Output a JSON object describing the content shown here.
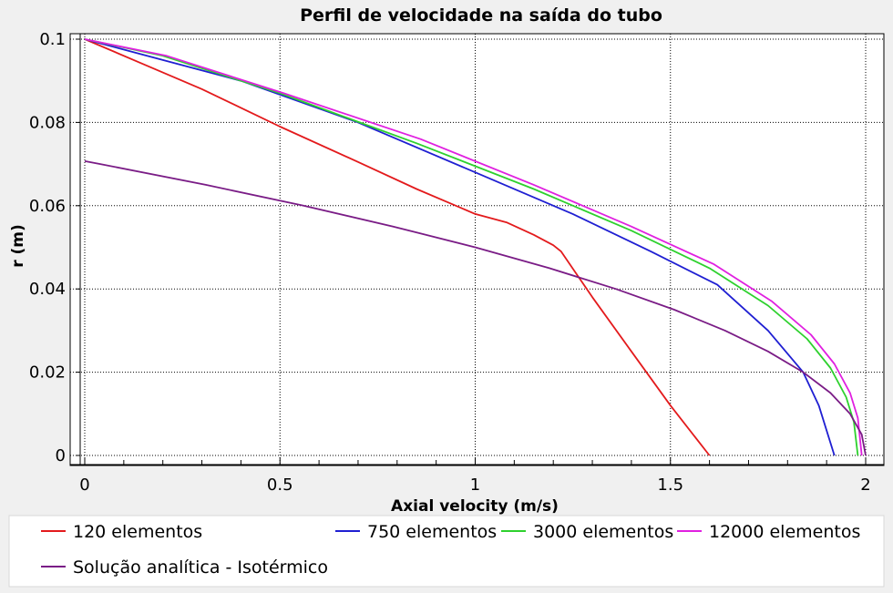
{
  "chart_data": {
    "type": "line",
    "title": "Perfil de velocidade na saída do tubo",
    "xlabel": "Axial velocity (m/s)",
    "ylabel": "r (m)",
    "xlim": [
      0,
      2
    ],
    "ylim": [
      0,
      0.1
    ],
    "x_ticks": [
      0,
      0.5,
      1,
      1.5,
      2
    ],
    "x_tick_labels": [
      "0",
      "0.5",
      "1",
      "1.5",
      "2"
    ],
    "y_ticks": [
      0,
      0.02,
      0.04,
      0.06,
      0.08,
      0.1
    ],
    "y_tick_labels": [
      "0",
      "0.02",
      "0.04",
      "0.06",
      "0.08",
      "0.1"
    ],
    "grid": true,
    "legend_position": "bottom",
    "series": [
      {
        "name": "120 elementos",
        "color": "#e31a1c",
        "points": [
          [
            1.6,
            0.0
          ],
          [
            1.5,
            0.012
          ],
          [
            1.4,
            0.025
          ],
          [
            1.3,
            0.038
          ],
          [
            1.22,
            0.049
          ],
          [
            1.2,
            0.0505
          ],
          [
            1.15,
            0.053
          ],
          [
            1.08,
            0.056
          ],
          [
            1.0,
            0.058
          ],
          [
            0.85,
            0.064
          ],
          [
            0.7,
            0.0705
          ],
          [
            0.5,
            0.079
          ],
          [
            0.3,
            0.088
          ],
          [
            0.15,
            0.094
          ],
          [
            0.0,
            0.1
          ]
        ]
      },
      {
        "name": "750 elementos",
        "color": "#1f1fd2",
        "points": [
          [
            1.92,
            0.0
          ],
          [
            1.88,
            0.012
          ],
          [
            1.84,
            0.02
          ],
          [
            1.75,
            0.03
          ],
          [
            1.62,
            0.041
          ],
          [
            1.45,
            0.049
          ],
          [
            1.25,
            0.058
          ],
          [
            1.0,
            0.068
          ],
          [
            0.7,
            0.08
          ],
          [
            0.4,
            0.09
          ],
          [
            0.2,
            0.095
          ],
          [
            0.0,
            0.1
          ]
        ]
      },
      {
        "name": "3000 elementos",
        "color": "#2ed12e",
        "points": [
          [
            1.98,
            0.0
          ],
          [
            1.97,
            0.008
          ],
          [
            1.95,
            0.014
          ],
          [
            1.91,
            0.021
          ],
          [
            1.85,
            0.028
          ],
          [
            1.75,
            0.036
          ],
          [
            1.6,
            0.045
          ],
          [
            1.4,
            0.054
          ],
          [
            1.15,
            0.064
          ],
          [
            0.85,
            0.075
          ],
          [
            0.5,
            0.087
          ],
          [
            0.2,
            0.096
          ],
          [
            0.0,
            0.1
          ]
        ]
      },
      {
        "name": "12000 elementos",
        "color": "#e020e0",
        "points": [
          [
            1.99,
            0.0
          ],
          [
            1.98,
            0.009
          ],
          [
            1.96,
            0.015
          ],
          [
            1.92,
            0.022
          ],
          [
            1.86,
            0.029
          ],
          [
            1.76,
            0.037
          ],
          [
            1.61,
            0.046
          ],
          [
            1.4,
            0.055
          ],
          [
            1.15,
            0.065
          ],
          [
            0.86,
            0.076
          ],
          [
            0.51,
            0.087
          ],
          [
            0.21,
            0.096
          ],
          [
            0.0,
            0.1
          ]
        ]
      },
      {
        "name": "Solução analítica - Isotérmico",
        "color": "#7a1c86",
        "points": [
          [
            2.0,
            0.0
          ],
          [
            1.99,
            0.005
          ],
          [
            1.96,
            0.01
          ],
          [
            1.91,
            0.015
          ],
          [
            1.84,
            0.02
          ],
          [
            1.75,
            0.025
          ],
          [
            1.64,
            0.03
          ],
          [
            1.51,
            0.035
          ],
          [
            1.36,
            0.04
          ],
          [
            1.19,
            0.045
          ],
          [
            1.0,
            0.05
          ],
          [
            0.79,
            0.055
          ],
          [
            0.56,
            0.06
          ],
          [
            0.31,
            0.065
          ],
          [
            0.04,
            0.07
          ],
          [
            0.0,
            0.0707
          ]
        ]
      }
    ]
  }
}
